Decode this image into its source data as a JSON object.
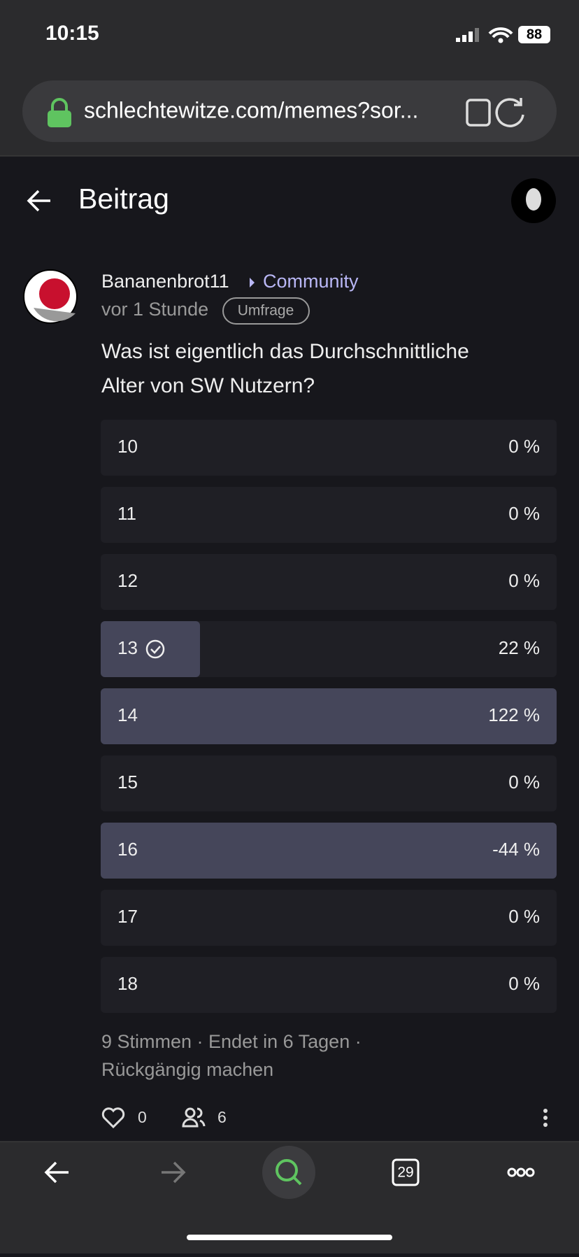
{
  "status": {
    "time": "10:15",
    "battery": "88"
  },
  "browser": {
    "url": "schlechtewitze.com/memes?sor..."
  },
  "header": {
    "title": "Beitrag"
  },
  "post": {
    "author": "Bananenbrot11",
    "community": "Community",
    "time": "vor 1 Stunde",
    "badge": "Umfrage",
    "question_lines": [
      "Was ist eigentlich das Durchschnittliche",
      "Alter von SW Nutzern?"
    ]
  },
  "poll": {
    "options": [
      {
        "label": "10",
        "percent": "0 %"
      },
      {
        "label": "11",
        "percent": "0 %"
      },
      {
        "label": "12",
        "percent": "0 %"
      },
      {
        "label": "13",
        "percent": "22 %"
      },
      {
        "label": "14",
        "percent": "122 %"
      },
      {
        "label": "15",
        "percent": "0 %"
      },
      {
        "label": "16",
        "percent": "-44 %"
      },
      {
        "label": "17",
        "percent": "0 %"
      },
      {
        "label": "18",
        "percent": "0 %"
      }
    ],
    "footer_lines": [
      "9 Stimmen · Endet in 6 Tagen ·",
      "Rückgängig machen"
    ]
  },
  "actions": {
    "likes": "0",
    "participants": "6"
  },
  "toolbar": {
    "tabs": "29"
  }
}
